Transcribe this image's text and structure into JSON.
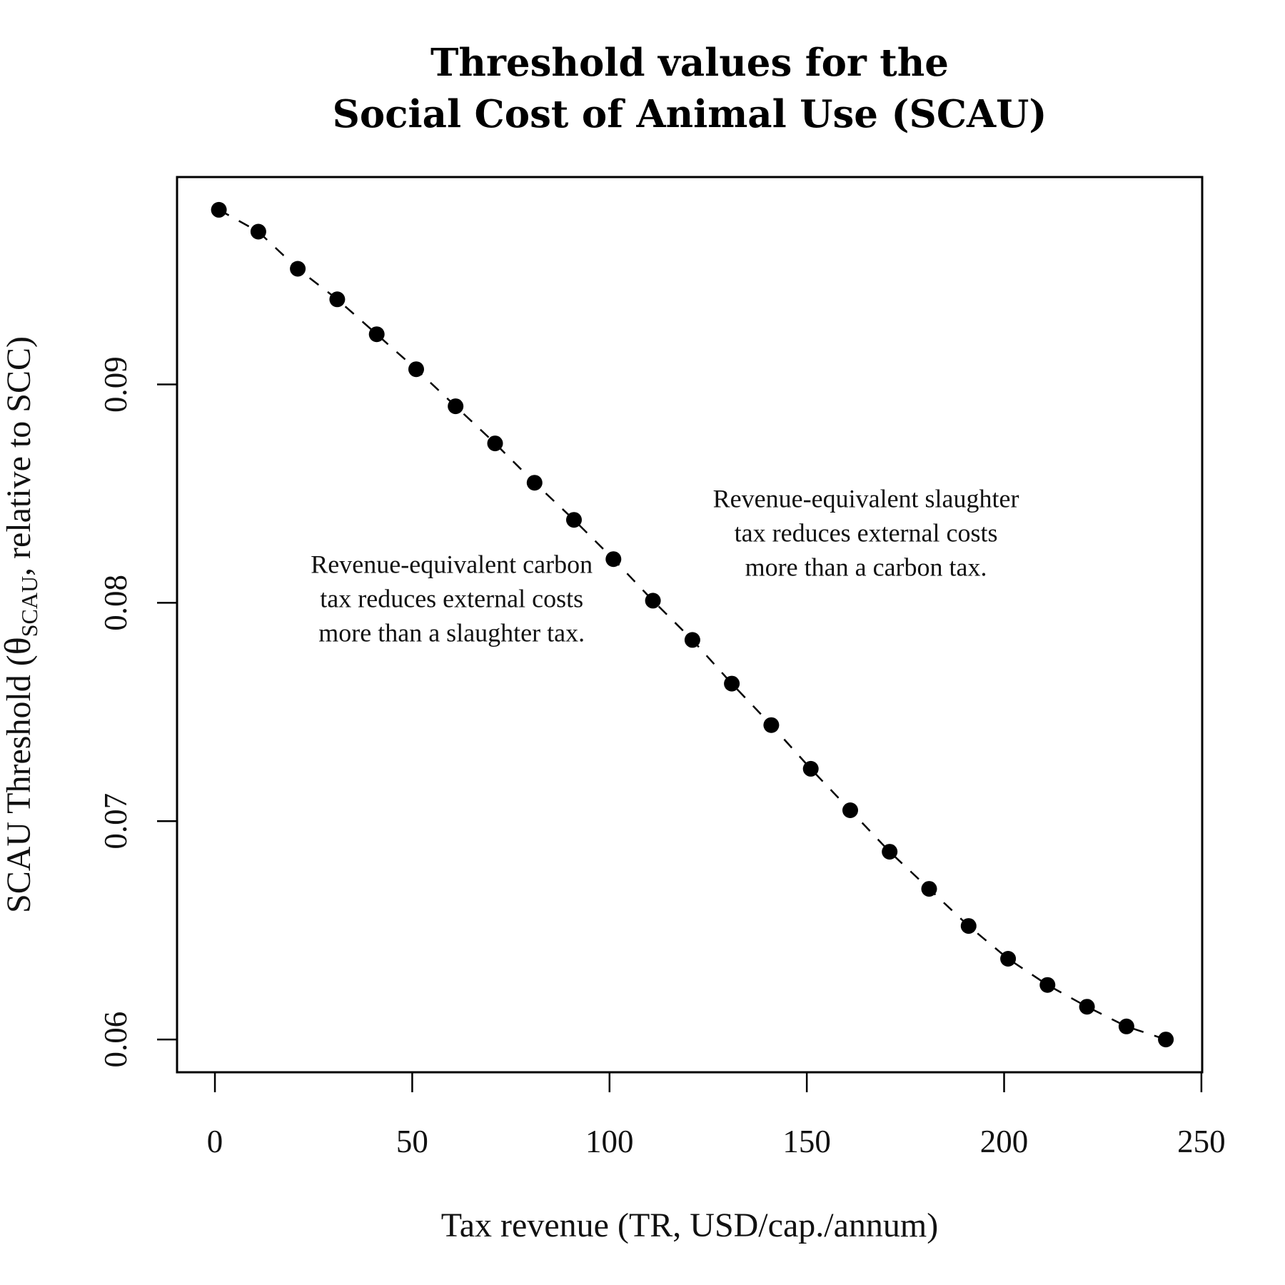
{
  "chart_data": {
    "type": "scatter",
    "title": [
      "Threshold values for the",
      "Social Cost of Animal Use (SCAU)"
    ],
    "xlabel": "Tax revenue (TR, USD/cap./annum)",
    "ylabel": {
      "prefix": "SCAU Threshold (",
      "symbol": "θ",
      "subscript": "SCAU",
      "suffix": ", relative to SCC)"
    },
    "xlim": [
      -9.6,
      250.2
    ],
    "ylim": [
      0.0585,
      0.0995
    ],
    "xticks": [
      0,
      50,
      100,
      150,
      200,
      250
    ],
    "yticks": [
      0.06,
      0.07,
      0.08,
      0.09
    ],
    "xtick_labels": [
      "0",
      "50",
      "100",
      "150",
      "200",
      "250"
    ],
    "ytick_labels": [
      "0.06",
      "0.07",
      "0.08",
      "0.09"
    ],
    "grid": false,
    "line_style": "dashed",
    "x": [
      1,
      11,
      21,
      31,
      41,
      51,
      61,
      71,
      81,
      91,
      101,
      111,
      121,
      131,
      141,
      151,
      161,
      171,
      181,
      191,
      201,
      211,
      221,
      231,
      241
    ],
    "y": [
      0.098,
      0.097,
      0.0953,
      0.0939,
      0.0923,
      0.0907,
      0.089,
      0.0873,
      0.0855,
      0.0838,
      0.082,
      0.0801,
      0.0783,
      0.0763,
      0.0744,
      0.0724,
      0.0705,
      0.0686,
      0.0669,
      0.0652,
      0.0637,
      0.0625,
      0.0615,
      0.0606,
      0.06
    ],
    "annotations": [
      {
        "lines": [
          "Revenue-equivalent carbon",
          "tax reduces external costs",
          "more than a slaughter tax."
        ],
        "x": 60,
        "y": 0.0802
      },
      {
        "lines": [
          "Revenue-equivalent slaughter",
          "tax reduces external costs",
          "more than a carbon tax."
        ],
        "x": 165,
        "y": 0.0832
      }
    ]
  }
}
